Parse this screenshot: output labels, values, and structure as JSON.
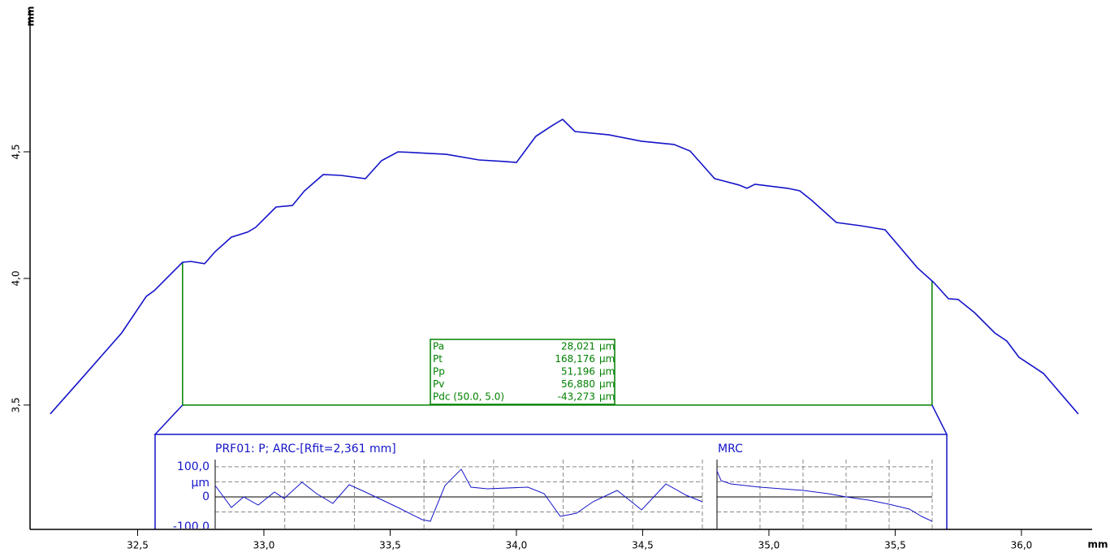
{
  "chart_data": {
    "type": "line",
    "x_label": "mm",
    "y_label": "mm",
    "color": "#1414c8",
    "xlim": [
      32.074,
      36.28
    ],
    "ylim": [
      3.009,
      5.061
    ],
    "xticks": [
      {
        "value": 32.5,
        "label": "32,5"
      },
      {
        "value": 33.0,
        "label": "33,0"
      },
      {
        "value": 33.5,
        "label": "33,5"
      },
      {
        "value": 34.0,
        "label": "34,0"
      },
      {
        "value": 34.5,
        "label": "34,5"
      },
      {
        "value": 35.0,
        "label": "35,0"
      },
      {
        "value": 35.5,
        "label": "35,5"
      },
      {
        "value": 36.0,
        "label": "36,0"
      }
    ],
    "yticks": [
      {
        "value": 3.5,
        "label": "3,5"
      },
      {
        "value": 4.0,
        "label": "4,0"
      },
      {
        "value": 4.5,
        "label": "4,5"
      }
    ],
    "x": [
      32.154,
      32.277,
      32.437,
      32.534,
      32.566,
      32.678,
      32.711,
      32.765,
      32.807,
      32.871,
      32.936,
      32.968,
      33.048,
      33.113,
      33.161,
      33.235,
      33.305,
      33.402,
      33.466,
      33.531,
      33.595,
      33.723,
      33.852,
      33.949,
      34.0,
      34.077,
      34.141,
      34.183,
      34.232,
      34.367,
      34.495,
      34.624,
      34.688,
      34.785,
      34.881,
      34.913,
      34.945,
      35.074,
      35.122,
      35.17,
      35.267,
      35.363,
      35.46,
      35.588,
      35.653,
      35.711,
      35.749,
      35.814,
      35.894,
      35.942,
      35.99,
      36.087,
      36.225
    ],
    "values": [
      3.465,
      3.603,
      3.785,
      3.929,
      3.952,
      4.064,
      4.067,
      4.058,
      4.106,
      4.163,
      4.183,
      4.202,
      4.282,
      4.288,
      4.346,
      4.41,
      4.407,
      4.394,
      4.465,
      4.5,
      4.497,
      4.49,
      4.468,
      4.462,
      4.458,
      4.561,
      4.603,
      4.628,
      4.58,
      4.567,
      4.542,
      4.529,
      4.503,
      4.394,
      4.369,
      4.356,
      4.372,
      4.356,
      4.346,
      4.308,
      4.221,
      4.208,
      4.192,
      4.042,
      3.984,
      3.92,
      3.917,
      3.865,
      3.785,
      3.753,
      3.689,
      3.625,
      3.465
    ],
    "evaluation_range": [
      32.678,
      35.646
    ],
    "evaluation_floor": 3.5,
    "evaluation_color": "#008000",
    "parameters": [
      {
        "name": "Pa",
        "value": "28,021",
        "unit": "µm"
      },
      {
        "name": "Pt",
        "value": "168,176",
        "unit": "µm"
      },
      {
        "name": "Pp",
        "value": "51,196",
        "unit": "µm"
      },
      {
        "name": "Pv",
        "value": "56,880",
        "unit": "µm"
      },
      {
        "name": "Pdc (50.0, 5.0)",
        "value": "-43,273",
        "unit": "µm"
      }
    ],
    "inset": {
      "title": "PRF01: P; ARC-[Rfit=2,361 mm]",
      "y_unit": "µm",
      "xlim": [
        32.678,
        35.646
      ],
      "ylim": [
        -108,
        124
      ],
      "yticks": [
        {
          "value": 100,
          "label": "100,0"
        },
        0,
        {
          "value": -100,
          "label": "-100,0"
        }
      ],
      "ygrid": [
        100,
        50,
        -50
      ],
      "xgrid": [
        32.678,
        33.102,
        33.526,
        33.95,
        34.374,
        34.798,
        35.222,
        35.646
      ],
      "x": [
        32.678,
        32.777,
        32.851,
        32.94,
        33.039,
        33.098,
        33.207,
        33.296,
        33.395,
        33.494,
        33.593,
        33.791,
        33.939,
        33.989,
        34.078,
        34.177,
        34.236,
        34.335,
        34.583,
        34.682,
        34.781,
        34.88,
        34.979,
        35.127,
        35.276,
        35.424,
        35.548,
        35.646
      ],
      "values": [
        37.8,
        -35.1,
        0,
        -27.0,
        16.2,
        -5.4,
        48.7,
        10.8,
        -21.6,
        40.5,
        16.2,
        -35.1,
        -75.7,
        -81.1,
        37.8,
        91.9,
        32.4,
        27.0,
        32.4,
        10.8,
        -64.9,
        -54.1,
        -16.2,
        21.6,
        -43.2,
        43.2,
        5.4,
        -16.2
      ]
    },
    "mrc": {
      "title": "MRC",
      "xlim": [
        0,
        100
      ],
      "xgrid": [
        0,
        20,
        40,
        60,
        80,
        100
      ],
      "x": [
        0,
        1.9,
        6.4,
        20,
        40,
        51.7,
        60,
        70.6,
        80,
        89.4,
        95.1,
        100
      ],
      "values": [
        86.5,
        54.1,
        43.2,
        32.4,
        21.6,
        10.8,
        0,
        -10.8,
        -24.3,
        -40.5,
        -64.9,
        -81.1
      ]
    }
  }
}
